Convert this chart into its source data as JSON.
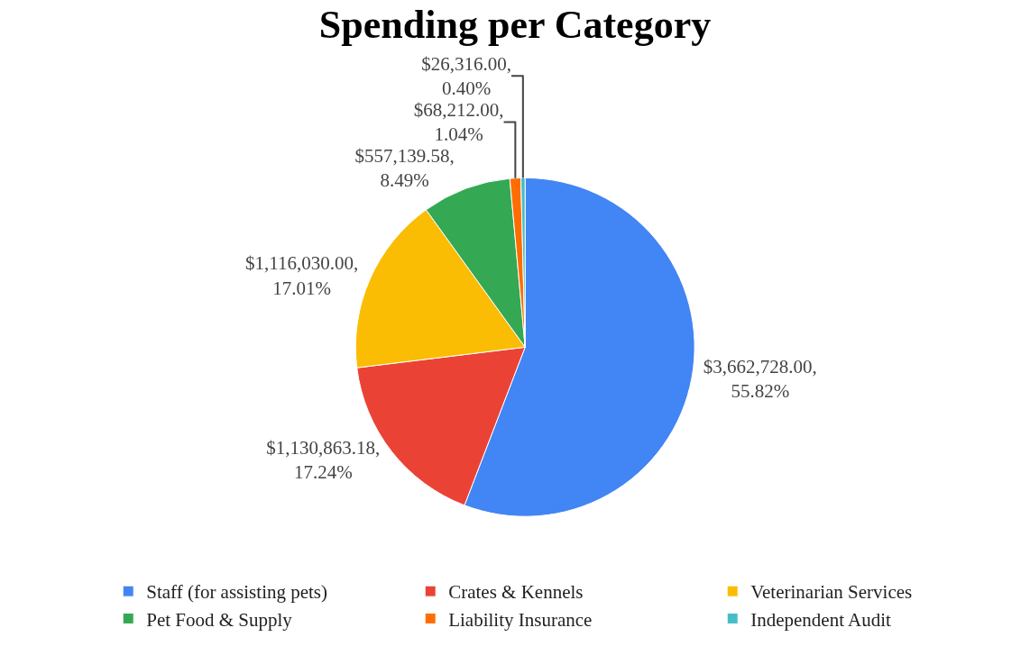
{
  "chart_data": {
    "type": "pie",
    "title": "Spending per Category",
    "categories": [
      "Staff (for assisting pets)",
      "Crates & Kennels",
      "Veterinarian Services",
      "Pet Food & Supply",
      "Liability Insurance",
      "Independent Audit"
    ],
    "values": [
      3662728.0,
      1130863.18,
      1116030.0,
      557139.58,
      68212.0,
      26316.0
    ],
    "colors": [
      "#4285f4",
      "#ea4335",
      "#fbbc04",
      "#34a853",
      "#ff6d01",
      "#46bdc6"
    ],
    "value_labels": [
      "$3,662,728.00,\n55.82%",
      "$1,130,863.18,\n17.24%",
      "$1,116,030.00,\n17.01%",
      "$557,139.58,\n8.49%",
      "$68,212.00,\n1.04%",
      "$26,316.00,\n0.40%"
    ],
    "legend": "bottom"
  }
}
